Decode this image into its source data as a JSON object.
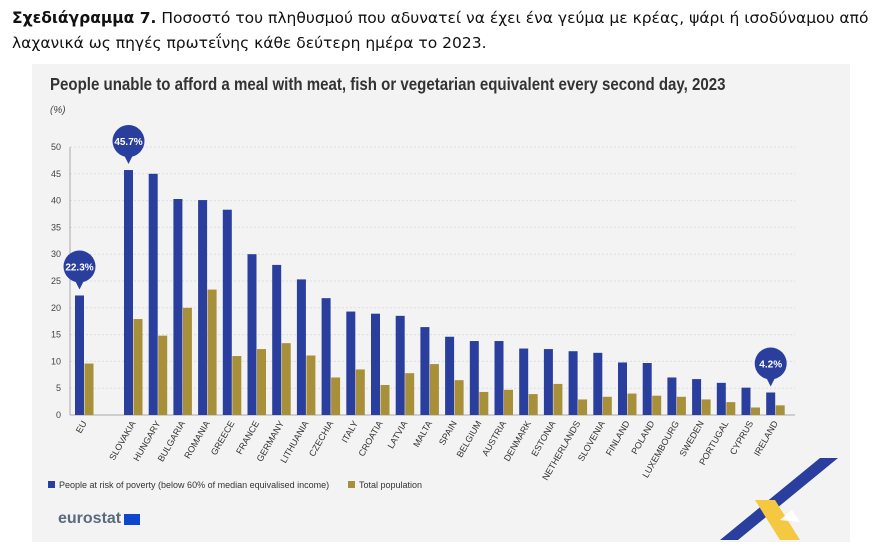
{
  "caption": {
    "label": "Σχεδιάγραμμα 7.",
    "text": "Ποσοστό του πληθυσμού που αδυνατεί να έχει ένα γεύμα με κρέας, ψάρι ή ισοδύναμου από λαχανικά ως πηγές πρωτεΐνης κάθε δεύτερη ημέρα το 2023."
  },
  "logo": "eurostat",
  "chart_data": {
    "type": "bar",
    "title": "People unable to afford a meal with meat, fish or vegetarian equivalent every second day, 2023",
    "ylabel": "(%)",
    "ylim": [
      0,
      50
    ],
    "yticks": [
      0,
      5,
      10,
      15,
      20,
      25,
      30,
      35,
      40,
      45,
      50
    ],
    "grid": true,
    "legend": "bottom-left",
    "categories": [
      "EU",
      "SLOVAKIA",
      "HUNGARY",
      "BULGARIA",
      "ROMANIA",
      "GREECE",
      "FRANCE",
      "GERMANY",
      "LITHUANIA",
      "CZECHIA",
      "ITALY",
      "CROATIA",
      "LATVIA",
      "MALTA",
      "SPAIN",
      "BELGIUM",
      "AUSTRIA",
      "DENMARK",
      "ESTONIA",
      "NETHERLANDS",
      "SLOVENIA",
      "FINLAND",
      "POLAND",
      "LUXEMBOURG",
      "SWEDEN",
      "PORTUGAL",
      "CYPRUS",
      "IRELAND"
    ],
    "series": [
      {
        "name": "People at risk of poverty (below 60% of median equivalised income)",
        "color": "#2a3f9d",
        "values": [
          22.3,
          45.7,
          45.0,
          40.3,
          40.1,
          38.3,
          30.0,
          28.0,
          25.3,
          21.8,
          19.3,
          18.9,
          18.5,
          16.4,
          14.6,
          13.8,
          13.8,
          12.4,
          12.3,
          11.9,
          11.6,
          9.8,
          9.7,
          7.0,
          6.7,
          6.0,
          5.1,
          4.2
        ]
      },
      {
        "name": "Total population",
        "color": "#a88f3a",
        "values": [
          9.6,
          17.9,
          14.8,
          20.0,
          23.4,
          11.0,
          12.3,
          13.4,
          11.1,
          7.0,
          8.5,
          5.6,
          7.8,
          9.5,
          6.5,
          4.3,
          4.7,
          3.9,
          5.8,
          2.9,
          3.4,
          4.0,
          3.6,
          3.4,
          2.9,
          2.4,
          1.4,
          1.8
        ]
      }
    ],
    "annotations": [
      {
        "category": "EU",
        "text": "22.3%"
      },
      {
        "category": "SLOVAKIA",
        "text": "45.7%"
      },
      {
        "category": "IRELAND",
        "text": "4.2%"
      }
    ]
  }
}
